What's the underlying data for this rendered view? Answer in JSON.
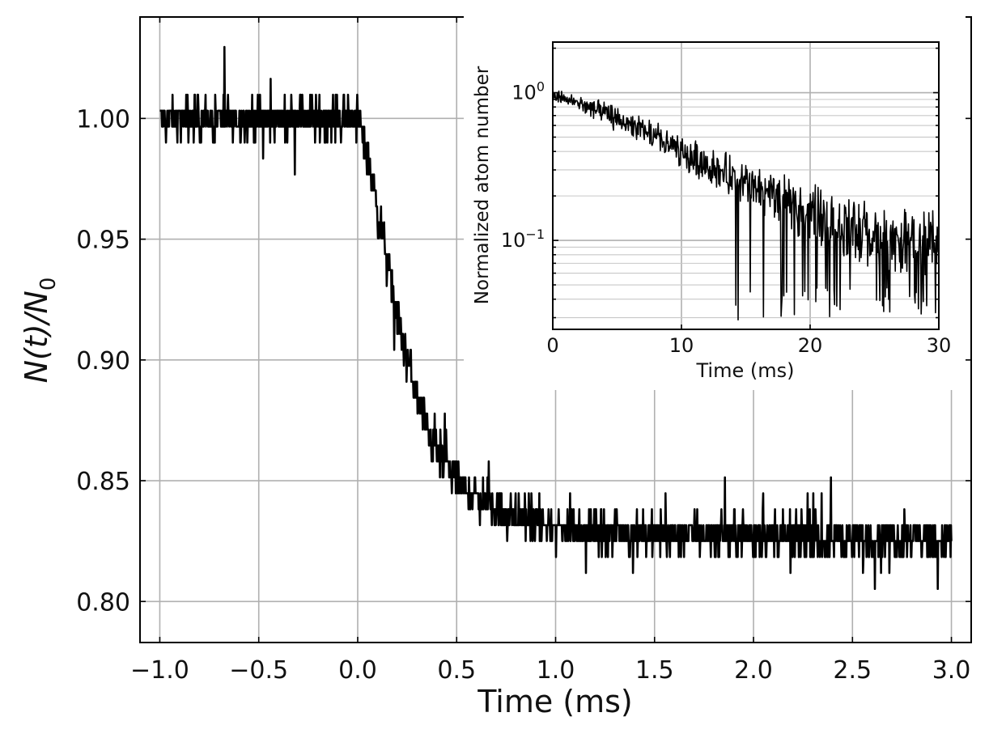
{
  "chart_data": [
    {
      "type": "line",
      "title": "",
      "xlabel": "Time (ms)",
      "ylabel_main": "N(t)/N",
      "ylabel_sub": "0",
      "xlim": [
        -1.1,
        3.1
      ],
      "ylim": [
        0.783,
        1.042
      ],
      "xticks": [
        -1.0,
        -0.5,
        0.0,
        0.5,
        1.0,
        1.5,
        2.0,
        2.5,
        3.0
      ],
      "xtick_labels": [
        "−1.0",
        "−0.5",
        "0.0",
        "0.5",
        "1.0",
        "1.5",
        "2.0",
        "2.5",
        "3.0"
      ],
      "yticks": [
        0.8,
        0.85,
        0.9,
        0.95,
        1.0
      ],
      "ytick_labels": [
        "0.80",
        "0.85",
        "0.90",
        "0.95",
        "1.00"
      ],
      "grid": true,
      "legend": "none",
      "color": "#000000",
      "series": [
        {
          "x": [
            -1.0,
            -0.8,
            -0.6,
            -0.4,
            -0.2,
            0.0,
            0.05,
            0.1,
            0.15,
            0.2,
            0.25,
            0.3,
            0.35,
            0.4,
            0.5,
            0.6,
            0.7,
            0.8,
            0.9,
            1.0,
            1.2,
            1.5,
            2.0,
            2.5,
            3.0
          ],
          "y": [
            1.0,
            1.0,
            1.0,
            1.0,
            1.0,
            1.0,
            0.985,
            0.962,
            0.94,
            0.918,
            0.9,
            0.885,
            0.872,
            0.862,
            0.85,
            0.843,
            0.838,
            0.835,
            0.833,
            0.831,
            0.829,
            0.828,
            0.827,
            0.826,
            0.826
          ],
          "noise_amplitude": 0.012,
          "min": 0.795,
          "max": 1.03
        }
      ]
    },
    {
      "type": "line",
      "title": "",
      "xlabel": "Time (ms)",
      "ylabel": "Normalized atom number",
      "yscale": "log",
      "xlim": [
        0,
        30
      ],
      "ylim": [
        0.025,
        2.2
      ],
      "xticks": [
        0,
        10,
        20,
        30
      ],
      "xtick_labels": [
        "0",
        "10",
        "20",
        "30"
      ],
      "yticks": [
        0.1,
        1.0
      ],
      "ytick_labels": [
        {
          "base": "10",
          "exp": "−1"
        },
        {
          "base": "10",
          "exp": "0"
        }
      ],
      "grid": true,
      "legend": "none",
      "color": "#000000",
      "series": [
        {
          "x": [
            0,
            2,
            4,
            6,
            8,
            10,
            12,
            14,
            16,
            18,
            20,
            22,
            24,
            26,
            28,
            30
          ],
          "y": [
            0.95,
            0.85,
            0.72,
            0.6,
            0.5,
            0.38,
            0.33,
            0.26,
            0.22,
            0.19,
            0.16,
            0.13,
            0.11,
            0.1,
            0.1,
            0.1
          ]
        }
      ]
    }
  ]
}
